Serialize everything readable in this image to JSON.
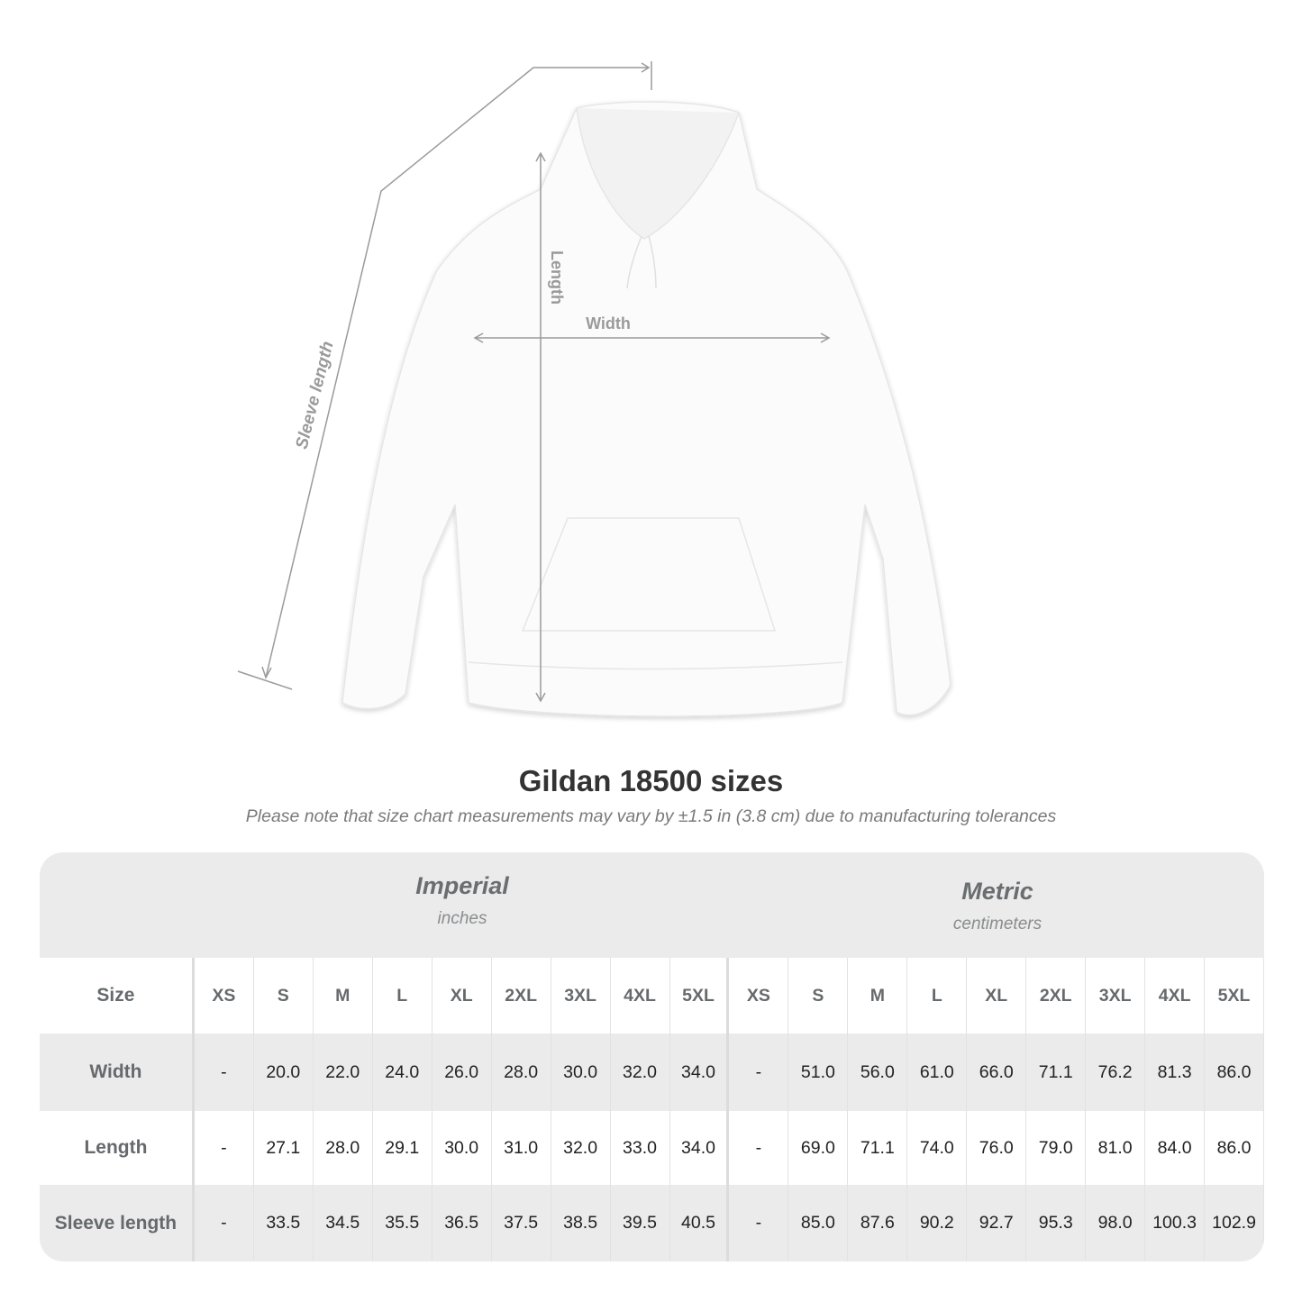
{
  "diagram": {
    "labels": {
      "length": "Length",
      "width": "Width",
      "sleeve": "Sleeve length"
    },
    "line_color": "#9a9a9a"
  },
  "title": "Gildan 18500 sizes",
  "subtitle": "Please note that size chart measurements may vary by ±1.5 in (3.8 cm) due to manufacturing tolerances",
  "table": {
    "groups": [
      {
        "name": "Imperial",
        "unit": "inches"
      },
      {
        "name": "Metric",
        "unit": "centimeters"
      }
    ],
    "header_label": "Size",
    "sizes": [
      "XS",
      "S",
      "M",
      "L",
      "XL",
      "2XL",
      "3XL",
      "4XL",
      "5XL"
    ],
    "rows": [
      {
        "label": "Width",
        "imperial": [
          "-",
          "20.0",
          "22.0",
          "24.0",
          "26.0",
          "28.0",
          "30.0",
          "32.0",
          "34.0"
        ],
        "metric": [
          "-",
          "51.0",
          "56.0",
          "61.0",
          "66.0",
          "71.1",
          "76.2",
          "81.3",
          "86.0"
        ]
      },
      {
        "label": "Length",
        "imperial": [
          "-",
          "27.1",
          "28.0",
          "29.1",
          "30.0",
          "31.0",
          "32.0",
          "33.0",
          "34.0"
        ],
        "metric": [
          "-",
          "69.0",
          "71.1",
          "74.0",
          "76.0",
          "79.0",
          "81.0",
          "84.0",
          "86.0"
        ]
      },
      {
        "label": "Sleeve length",
        "imperial": [
          "-",
          "33.5",
          "34.5",
          "35.5",
          "36.5",
          "37.5",
          "38.5",
          "39.5",
          "40.5"
        ],
        "metric": [
          "-",
          "85.0",
          "87.6",
          "90.2",
          "92.7",
          "95.3",
          "98.0",
          "100.3",
          "102.9"
        ]
      }
    ]
  }
}
